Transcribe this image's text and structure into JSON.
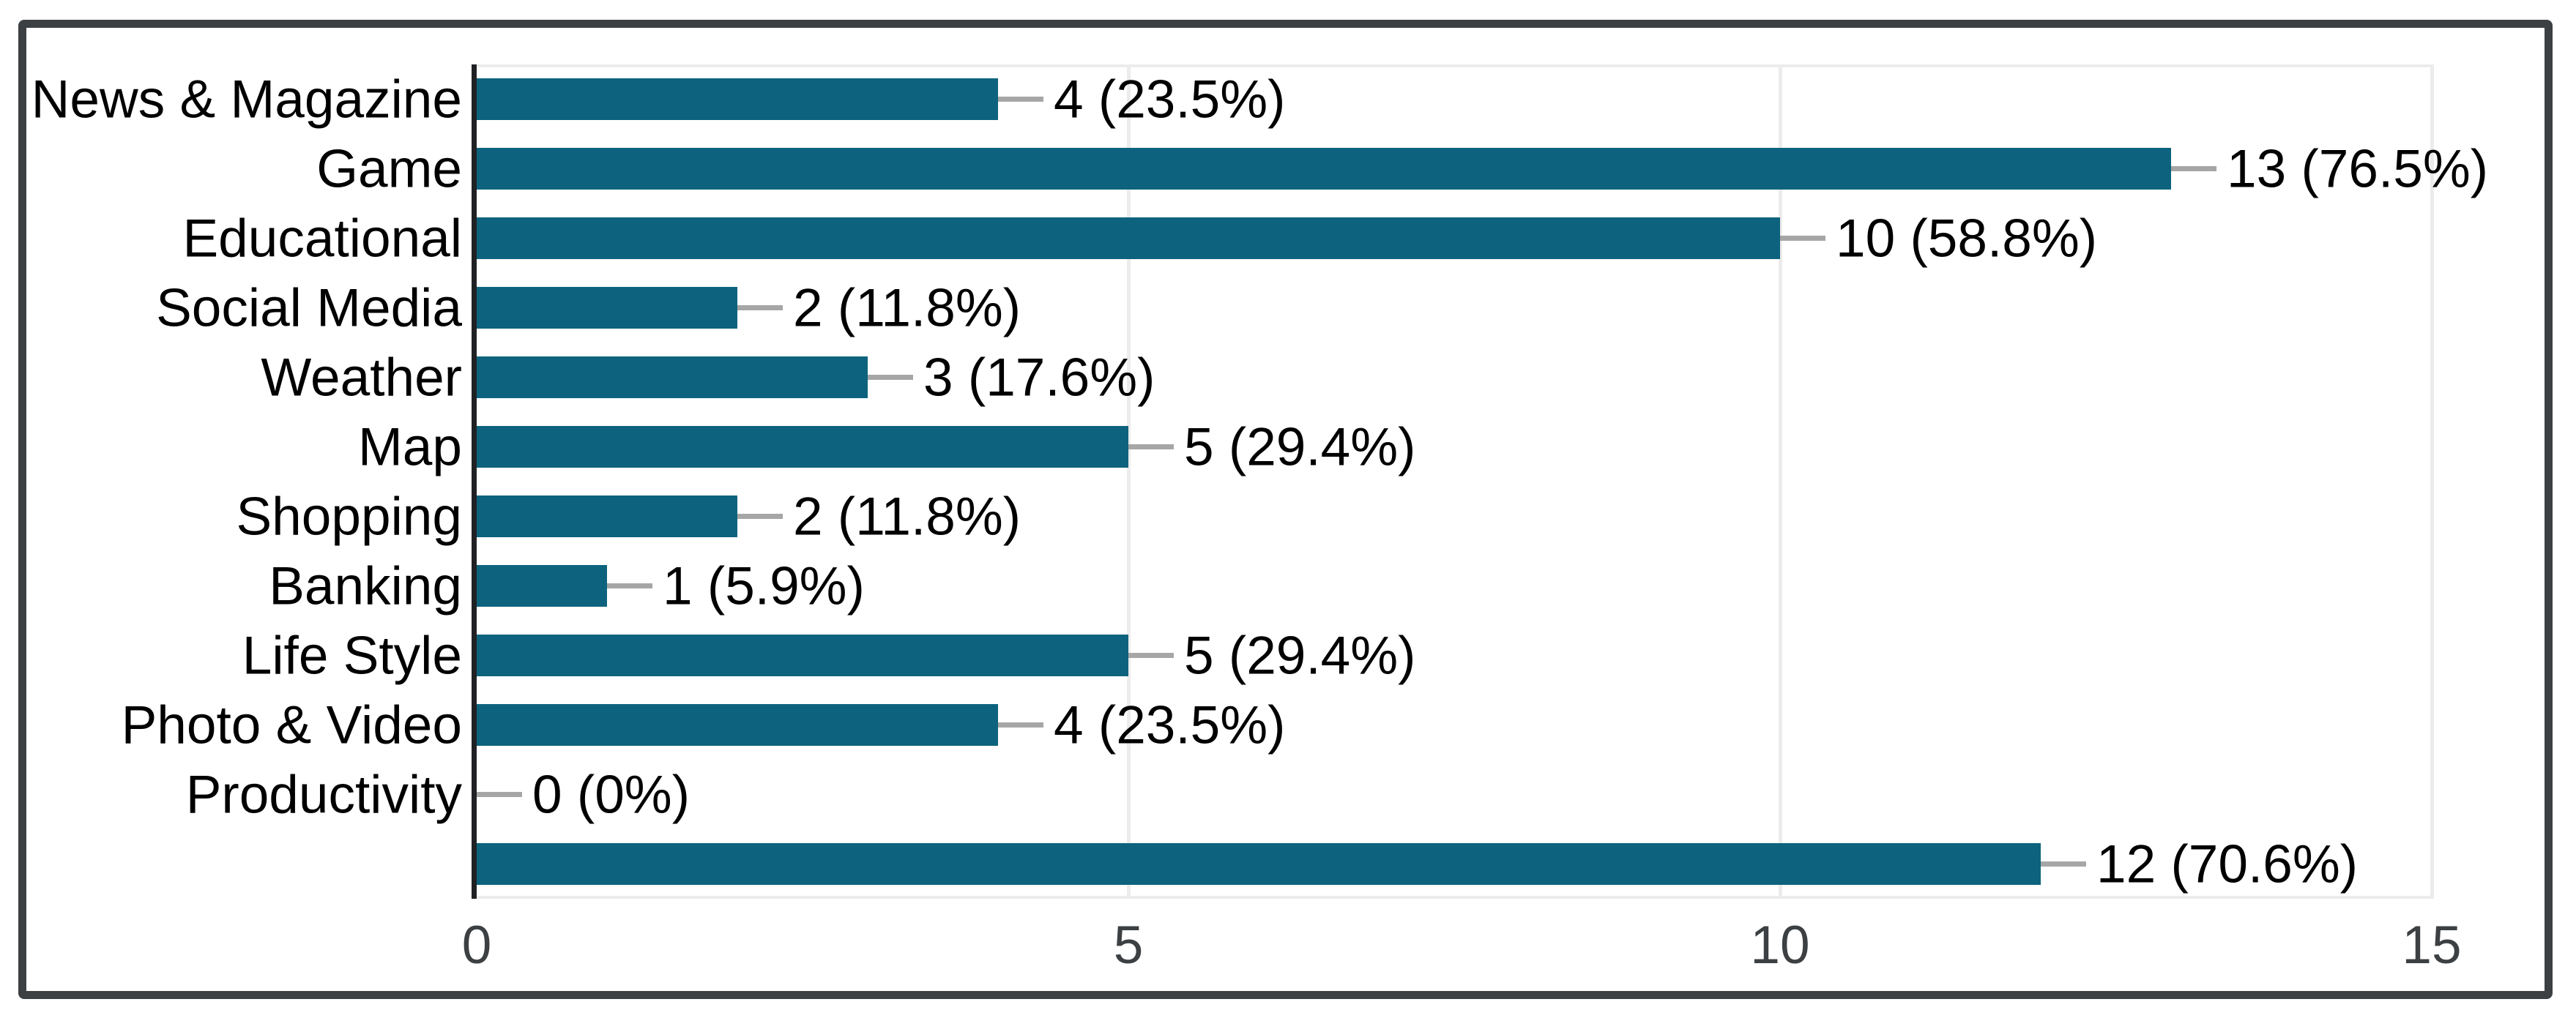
{
  "chart_data": {
    "type": "bar",
    "orientation": "horizontal",
    "title": "",
    "xlabel": "",
    "ylabel": "",
    "legend": "none",
    "grid": true,
    "xlim": [
      0,
      15
    ],
    "xticks": [
      "0",
      "5",
      "10",
      "15"
    ],
    "categories": [
      "News & Magazine",
      "Game",
      "Educational",
      "Social Media",
      "Weather",
      "Map",
      "Shopping",
      "Banking",
      "Life Style",
      "Photo & Video",
      "Productivity",
      ""
    ],
    "values": [
      4,
      13,
      10,
      2,
      3,
      5,
      2,
      1,
      5,
      4,
      0,
      12
    ],
    "value_labels": [
      "4 (23.5%)",
      "13 (76.5%)",
      "10 (58.8%)",
      "2 (11.8%)",
      "3 (17.6%)",
      "5 (29.4%)",
      "2 (11.8%)",
      "1 (5.9%)",
      "5 (29.4%)",
      "4 (23.5%)",
      "0 (0%)",
      "12 (70.6%)"
    ],
    "colors": {
      "bar": "#0d637d",
      "axis": "#202124",
      "gridline": "#ececec",
      "leader_line": "#a6a6a6",
      "frame_border": "#3c4043",
      "tick_text": "#3c4043",
      "label_text": "#000000",
      "background": "#ffffff"
    }
  }
}
